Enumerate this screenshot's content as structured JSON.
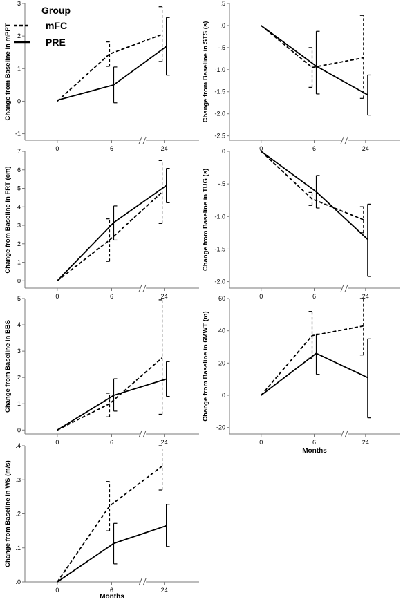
{
  "legend": {
    "title": "Group",
    "items": [
      {
        "label": "mFC",
        "style": "dashed"
      },
      {
        "label": "PRE",
        "style": "solid"
      }
    ]
  },
  "chart_data": [
    {
      "type": "line",
      "ylabel": "Change from Baseline in mPPT",
      "xlabel": "",
      "categories": [
        "0",
        "6",
        "24"
      ],
      "ylim": [
        -1.2,
        3
      ],
      "yticks": [
        "-1",
        "0",
        "1",
        "2",
        "3"
      ],
      "series": [
        {
          "name": "mFC",
          "style": "dashed",
          "values": [
            0,
            1.45,
            2.05
          ],
          "error_low": [
            0,
            1.07,
            1.22
          ],
          "error_high": [
            0,
            1.82,
            2.9
          ]
        },
        {
          "name": "PRE",
          "style": "solid",
          "values": [
            0.03,
            0.5,
            1.68
          ],
          "error_low": [
            0.03,
            -0.05,
            0.8
          ],
          "error_high": [
            0.03,
            1.05,
            2.57
          ]
        }
      ]
    },
    {
      "type": "line",
      "ylabel": "Change from Baseline in STS (s)",
      "xlabel": "",
      "categories": [
        "0",
        "6",
        "24"
      ],
      "ylim": [
        -2.6,
        0.5
      ],
      "yticks": [
        ".5",
        ".0",
        "-.5",
        "-1.0",
        "-1.5",
        "-2.0",
        "-2.5"
      ],
      "series": [
        {
          "name": "mFC",
          "style": "dashed",
          "values": [
            0,
            -0.95,
            -0.73
          ],
          "error_low": [
            0,
            -1.4,
            -1.65
          ],
          "error_high": [
            0,
            -0.5,
            0.23
          ]
        },
        {
          "name": "PRE",
          "style": "solid",
          "values": [
            0,
            -0.92,
            -1.57
          ],
          "error_low": [
            0,
            -1.55,
            -2.03
          ],
          "error_high": [
            0,
            -0.13,
            -1.12
          ]
        }
      ]
    },
    {
      "type": "line",
      "ylabel": "Change from Baseline in FRT (cm)",
      "xlabel": "",
      "categories": [
        "0",
        "6",
        "24"
      ],
      "ylim": [
        -0.4,
        7
      ],
      "yticks": [
        "0",
        "1",
        "2",
        "3",
        "4",
        "5",
        "6",
        "7"
      ],
      "series": [
        {
          "name": "mFC",
          "style": "dashed",
          "values": [
            0,
            2.2,
            4.8
          ],
          "error_low": [
            0,
            1.05,
            3.1
          ],
          "error_high": [
            0,
            3.35,
            6.5
          ]
        },
        {
          "name": "PRE",
          "style": "solid",
          "values": [
            0,
            3.15,
            5.15
          ],
          "error_low": [
            0,
            2.2,
            4.22
          ],
          "error_high": [
            0,
            4.05,
            6.08
          ]
        }
      ]
    },
    {
      "type": "line",
      "ylabel": "Change from Baseline in TUG (s)",
      "xlabel": "",
      "categories": [
        "0",
        "6",
        "24"
      ],
      "ylim": [
        -2.1,
        0
      ],
      "yticks": [
        ".0",
        "-.5",
        "-1.0",
        "-1.5",
        "-2.0"
      ],
      "series": [
        {
          "name": "mFC",
          "style": "dashed",
          "values": [
            0,
            -0.73,
            -1.05
          ],
          "error_low": [
            0,
            -0.83,
            -1.25
          ],
          "error_high": [
            0,
            -0.63,
            -0.85
          ]
        },
        {
          "name": "PRE",
          "style": "solid",
          "values": [
            0,
            -0.62,
            -1.35
          ],
          "error_low": [
            0,
            -0.87,
            -1.92
          ],
          "error_high": [
            0,
            -0.37,
            -0.81
          ]
        }
      ]
    },
    {
      "type": "line",
      "ylabel": "Change from Baseline in BBS",
      "xlabel": "",
      "categories": [
        "0",
        "6",
        "24"
      ],
      "ylim": [
        -0.15,
        5
      ],
      "yticks": [
        "0",
        "1",
        "2",
        "3",
        "4",
        "5"
      ],
      "series": [
        {
          "name": "mFC",
          "style": "dashed",
          "values": [
            0,
            1.0,
            2.75
          ],
          "error_low": [
            0,
            0.5,
            0.6
          ],
          "error_high": [
            0,
            1.4,
            4.95
          ]
        },
        {
          "name": "PRE",
          "style": "solid",
          "values": [
            0,
            1.32,
            1.94
          ],
          "error_low": [
            0,
            0.72,
            1.28
          ],
          "error_high": [
            0,
            1.95,
            2.6
          ]
        }
      ]
    },
    {
      "type": "line",
      "ylabel": "Change from Baseline in 6MWT (m)",
      "xlabel": "Months",
      "categories": [
        "0",
        "6",
        "24"
      ],
      "ylim": [
        -24,
        60
      ],
      "yticks": [
        "60",
        "40",
        "20",
        "0",
        "-20"
      ],
      "series": [
        {
          "name": "mFC",
          "style": "dashed",
          "values": [
            0,
            37,
            43
          ],
          "error_low": [
            0,
            23,
            25
          ],
          "error_high": [
            0,
            52,
            60
          ]
        },
        {
          "name": "PRE",
          "style": "solid",
          "values": [
            0,
            26,
            11
          ],
          "error_low": [
            0,
            13,
            -14
          ],
          "error_high": [
            0,
            38,
            35
          ]
        }
      ]
    },
    {
      "type": "line",
      "ylabel": "Change from Baseline in WS (m/s)",
      "xlabel": "Months",
      "categories": [
        "0",
        "6",
        "24"
      ],
      "ylim": [
        0,
        0.4
      ],
      "yticks": [
        ".0",
        ".1",
        ".2",
        ".3",
        ".4"
      ],
      "series": [
        {
          "name": "mFC",
          "style": "dashed",
          "values": [
            0,
            0.223,
            0.34
          ],
          "error_low": [
            0,
            0.15,
            0.27
          ],
          "error_high": [
            0,
            0.295,
            0.4
          ]
        },
        {
          "name": "PRE",
          "style": "solid",
          "values": [
            0,
            0.113,
            0.165
          ],
          "error_low": [
            0,
            0.053,
            0.104
          ],
          "error_high": [
            0,
            0.172,
            0.228
          ]
        }
      ]
    }
  ]
}
